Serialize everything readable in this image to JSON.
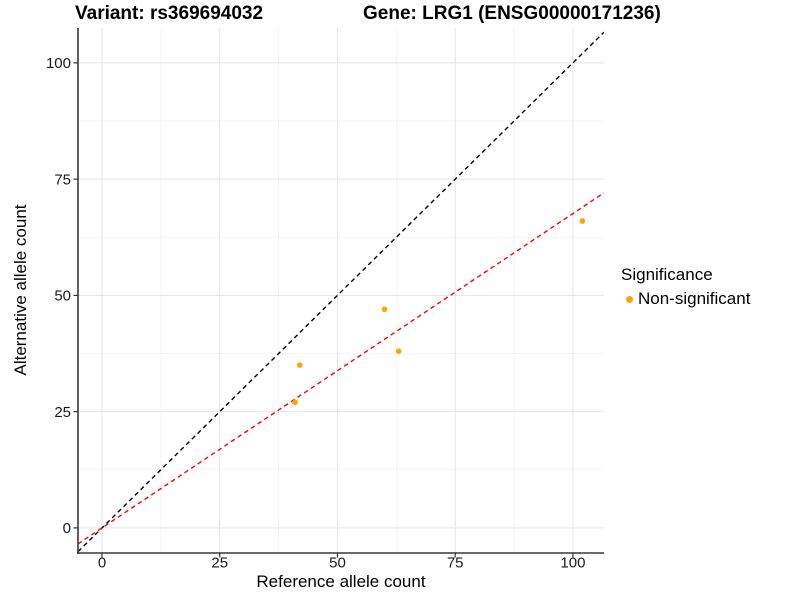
{
  "chart_data": {
    "type": "scatter",
    "title_left": "Variant: rs369694032",
    "title_right": "Gene: LRG1 (ENSG00000171236)",
    "xlabel": "Reference allele count",
    "ylabel": "Alternative allele count",
    "xlim": [
      -5.1,
      106.6
    ],
    "ylim": [
      -5.4,
      107.5
    ],
    "x_ticks": [
      0,
      25,
      50,
      75,
      100
    ],
    "y_ticks": [
      0,
      25,
      50,
      75,
      100
    ],
    "x_minor_ticks": [
      12.5,
      37.5,
      62.5,
      87.5
    ],
    "y_minor_ticks": [
      12.5,
      37.5,
      62.5,
      87.5
    ],
    "grid": "major+minor",
    "legend": {
      "title": "Significance",
      "position": "right",
      "entries": [
        {
          "label": "Non-significant",
          "color": "#FFA500",
          "marker": "circle"
        }
      ]
    },
    "series": [
      {
        "name": "Non-significant",
        "color": "#FFA500",
        "points": [
          [
            41,
            27
          ],
          [
            42,
            35
          ],
          [
            60,
            47
          ],
          [
            63,
            38
          ],
          [
            102,
            66
          ]
        ]
      }
    ],
    "lines": [
      {
        "name": "identity",
        "slope": 1,
        "intercept": 0,
        "color": "#000000",
        "dash": "dashed"
      },
      {
        "name": "fit",
        "slope": 0.676,
        "intercept": 0,
        "color": "#FF0000",
        "dash": "dashed"
      }
    ],
    "colors": {
      "background": "#FFFFFF",
      "grid_major": "#E4E4E4",
      "grid_minor": "#F2F2F2",
      "axis_line": "#383838",
      "tick_mark": "#333333",
      "tick_label": "#1A1A1A"
    }
  }
}
